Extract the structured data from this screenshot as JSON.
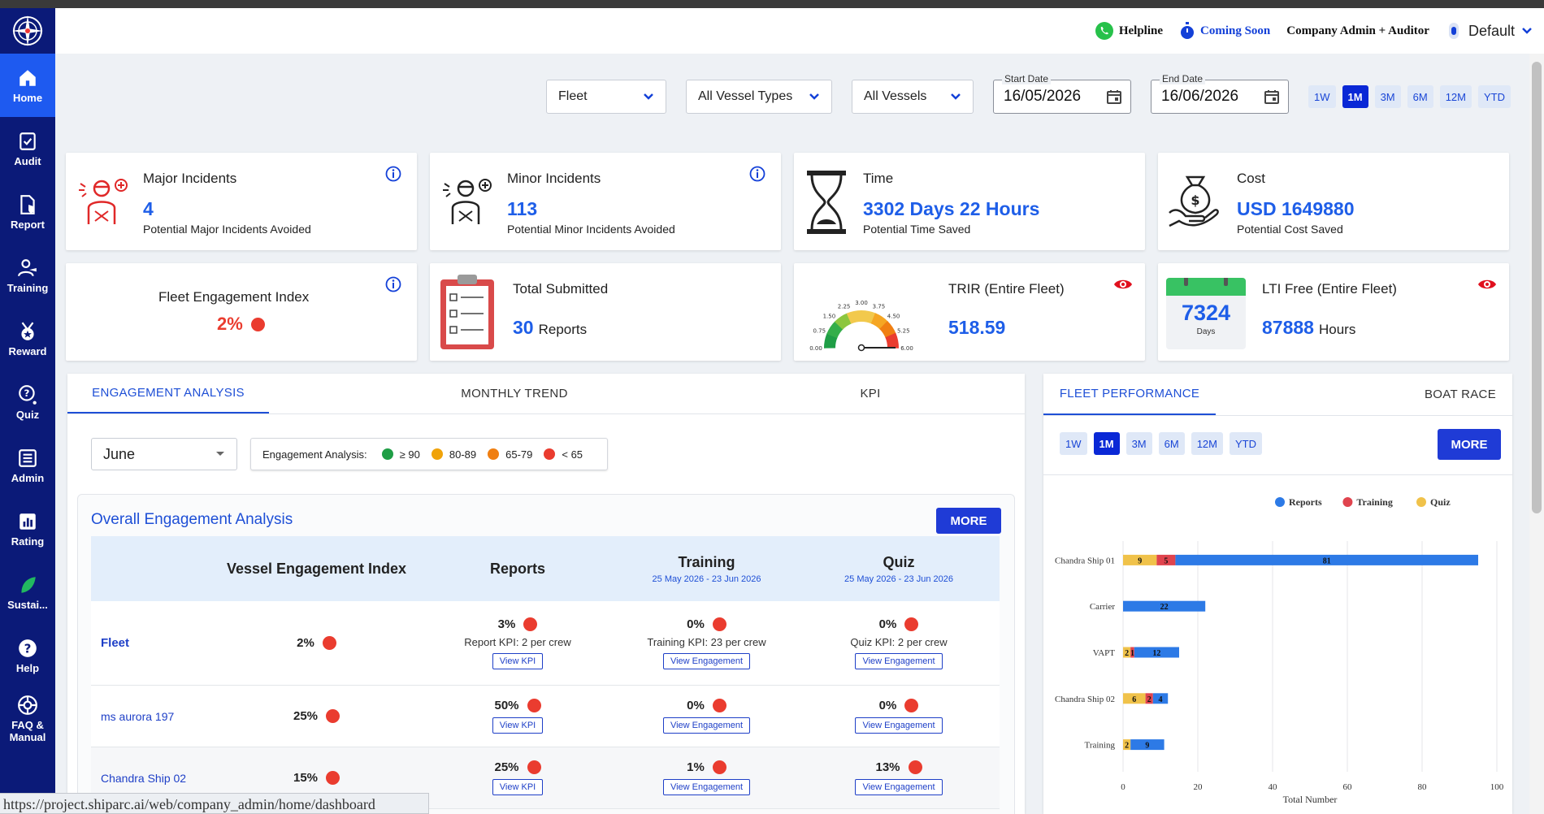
{
  "sidebar": {
    "items": [
      {
        "label": "Home",
        "icon": "home-icon"
      },
      {
        "label": "Audit",
        "icon": "audit-icon"
      },
      {
        "label": "Report",
        "icon": "report-icon"
      },
      {
        "label": "Training",
        "icon": "training-icon"
      },
      {
        "label": "Reward",
        "icon": "reward-icon"
      },
      {
        "label": "Quiz",
        "icon": "quiz-icon"
      },
      {
        "label": "Admin",
        "icon": "admin-icon"
      },
      {
        "label": "Rating",
        "icon": "rating-icon"
      },
      {
        "label": "Sustai...",
        "icon": "leaf-icon"
      },
      {
        "label": "Help",
        "icon": "help-icon"
      },
      {
        "label": "FAQ &",
        "label2": "Manual",
        "icon": "faq-icon"
      }
    ]
  },
  "header": {
    "helpline": "Helpline",
    "coming_soon": "Coming Soon",
    "role": "Company Admin + Auditor",
    "profile": "Default"
  },
  "filters": {
    "fleet": "Fleet",
    "vessel_types": "All Vessel Types",
    "vessels": "All Vessels",
    "start_label": "Start Date",
    "start_value": "16/05/2026",
    "end_label": "End Date",
    "end_value": "16/06/2026",
    "periods": [
      "1W",
      "1M",
      "3M",
      "6M",
      "12M",
      "YTD"
    ],
    "active_period": "1M"
  },
  "cards": {
    "major": {
      "title": "Major Incidents",
      "value": "4",
      "sub": "Potential Major Incidents Avoided"
    },
    "minor": {
      "title": "Minor Incidents",
      "value": "113",
      "sub": "Potential Minor Incidents Avoided"
    },
    "time": {
      "title": "Time",
      "value": "3302 Days 22 Hours",
      "sub": "Potential Time Saved"
    },
    "cost": {
      "title": "Cost",
      "value": "USD 1649880",
      "sub": "Potential Cost Saved"
    },
    "fei": {
      "title": "Fleet Engagement Index",
      "value": "2%"
    },
    "submitted": {
      "title": "Total Submitted",
      "value": "30",
      "unit": "Reports"
    },
    "trir": {
      "title": "TRIR (Entire Fleet)",
      "value": "518.59",
      "gauge_ticks": [
        "0.00",
        "0.75",
        "1.50",
        "2.25",
        "3.00",
        "3.75",
        "4.50",
        "5.25",
        "6.00"
      ]
    },
    "lti": {
      "title": "LTI Free (Entire Fleet)",
      "days_value": "7324",
      "days_label": "Days",
      "value": "87888",
      "unit": "Hours"
    }
  },
  "engagement": {
    "tabs": [
      "ENGAGEMENT ANALYSIS",
      "MONTHLY TREND",
      "KPI"
    ],
    "month": "June",
    "legend_label": "Engagement Analysis:",
    "legend": [
      {
        "label": "≥ 90",
        "color": "#1f9e46"
      },
      {
        "label": "80-89",
        "color": "#f0a30a"
      },
      {
        "label": "65-79",
        "color": "#f07f12"
      },
      {
        "label": "< 65",
        "color": "#ea3c2f"
      }
    ],
    "section_title": "Overall Engagement Analysis",
    "more": "MORE",
    "columns": {
      "vei": "Vessel Engagement Index",
      "reports": "Reports",
      "training": "Training",
      "training_range": "25 May 2026 - 23 Jun 2026",
      "quiz": "Quiz",
      "quiz_range": "25 May 2026 - 23 Jun 2026"
    },
    "rows": [
      {
        "name": "Fleet",
        "vei": "2%",
        "reports": "3%",
        "reports_kpi": "Report KPI: 2 per crew",
        "training": "0%",
        "training_kpi": "Training KPI: 23 per crew",
        "quiz": "0%",
        "quiz_kpi": "Quiz KPI: 2 per crew",
        "btn_kpi": "View KPI",
        "btn_eng": "View Engagement"
      },
      {
        "name": "ms aurora 197",
        "vei": "25%",
        "reports": "50%",
        "training": "0%",
        "quiz": "0%",
        "btn_kpi": "View KPI",
        "btn_eng": "View Engagement"
      },
      {
        "name": "Chandra Ship 02",
        "vei": "15%",
        "reports": "25%",
        "training": "1%",
        "quiz": "13%",
        "btn_kpi": "View KPI",
        "btn_eng": "View Engagement"
      }
    ]
  },
  "fleet_panel": {
    "tabs": [
      "FLEET PERFORMANCE",
      "BOAT RACE"
    ],
    "periods": [
      "1W",
      "1M",
      "3M",
      "6M",
      "12M",
      "YTD"
    ],
    "active_period": "1M",
    "more": "MORE"
  },
  "chart_data": {
    "type": "bar",
    "orientation": "horizontal",
    "stacked": true,
    "categories": [
      "Chandra Ship 01",
      "Carrier",
      "VAPT",
      "Chandra Ship 02",
      "Training"
    ],
    "series": [
      {
        "name": "Quiz",
        "color": "#f0c24a",
        "values": [
          9,
          0,
          2,
          6,
          2
        ]
      },
      {
        "name": "Training",
        "color": "#e0444e",
        "values": [
          5,
          0,
          1,
          2,
          0
        ]
      },
      {
        "name": "Reports",
        "color": "#2d7ae6",
        "values": [
          81,
          22,
          12,
          4,
          9
        ]
      }
    ],
    "legend_order": [
      "Reports",
      "Training",
      "Quiz"
    ],
    "legend_position": "top-right",
    "xlabel": "Total Number",
    "xlim": [
      0,
      100
    ],
    "xticks": [
      0,
      20,
      40,
      60,
      80,
      100
    ],
    "grid": true
  },
  "statusbar": "https://project.shiparc.ai/web/company_admin/home/dashboard"
}
